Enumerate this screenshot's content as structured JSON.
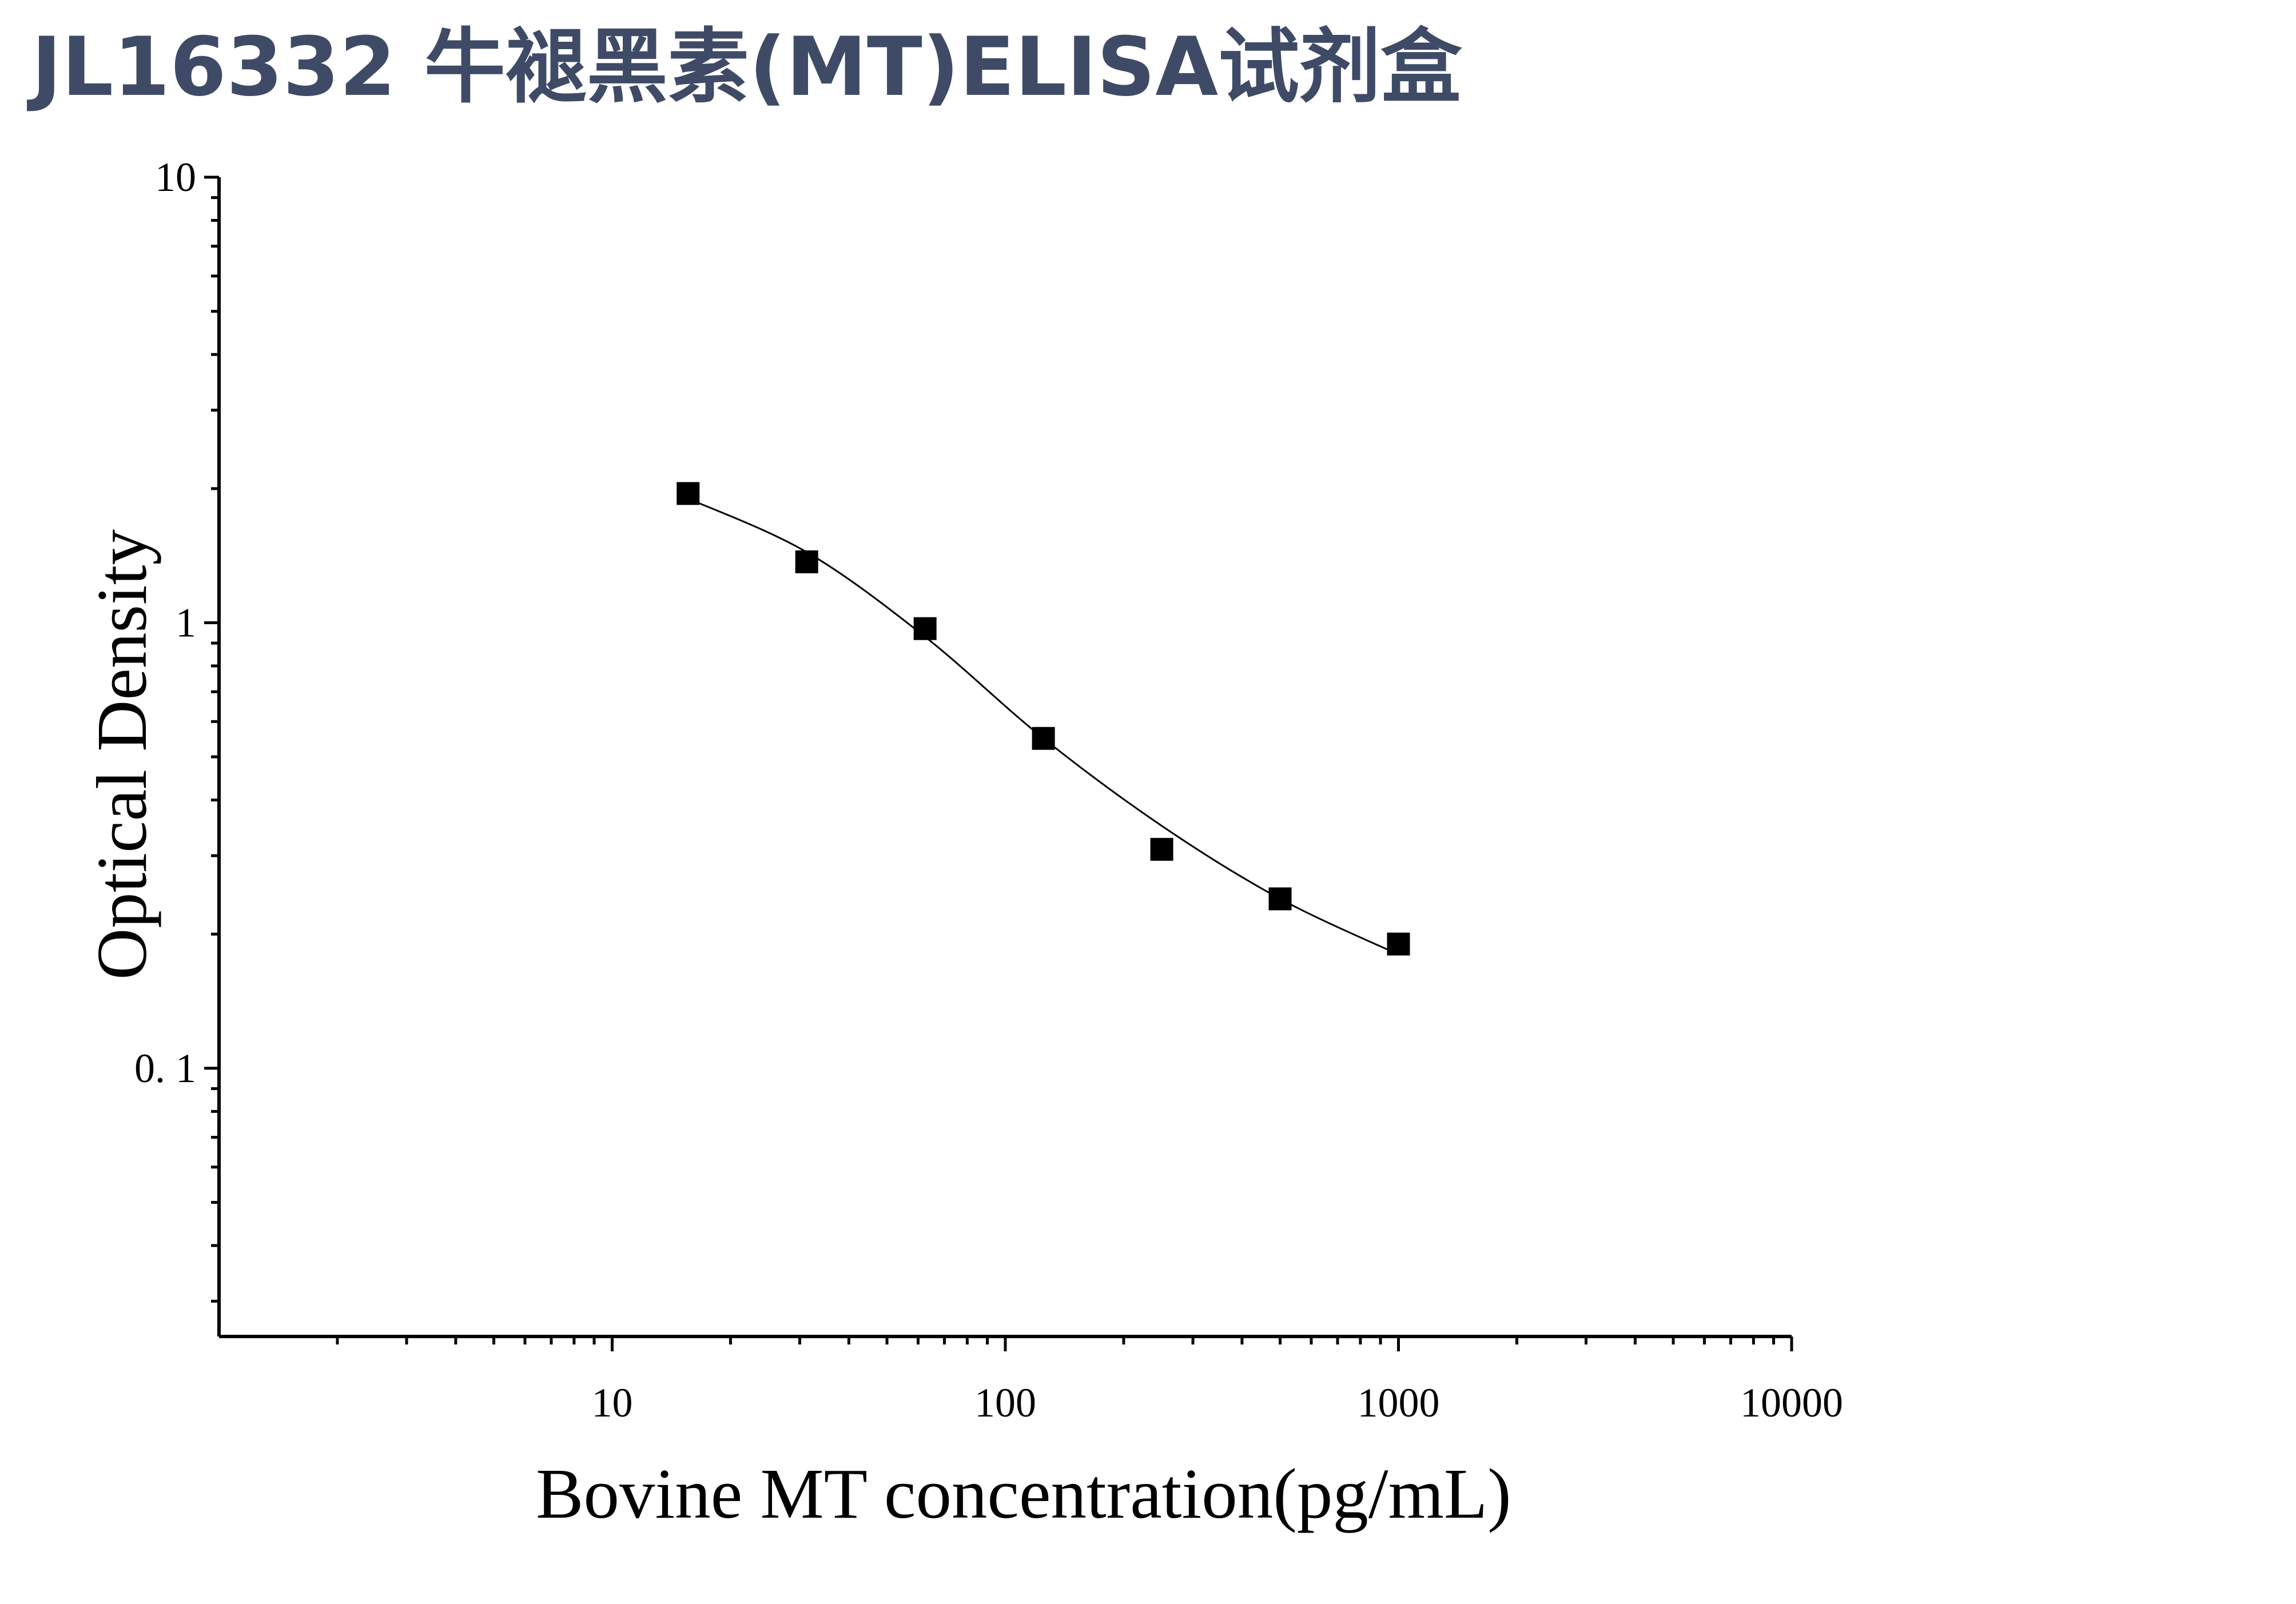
{
  "title": "JL16332 牛褪黑素(MT)ELISA试剂盒",
  "chart_data": {
    "type": "scatter",
    "title": "",
    "xlabel": "Bovine MT concentration(pg/mL)",
    "ylabel": "Optical Density",
    "x_scale": "log",
    "y_scale": "log",
    "xlim": [
      1,
      10000
    ],
    "ylim": [
      0.025,
      10
    ],
    "x_ticks": [
      {
        "value": 10,
        "label": "10"
      },
      {
        "value": 100,
        "label": "100"
      },
      {
        "value": 1000,
        "label": "1000"
      },
      {
        "value": 10000,
        "label": "10000"
      }
    ],
    "y_ticks": [
      {
        "value": 0.1,
        "label": "0. 1"
      },
      {
        "value": 1,
        "label": "1"
      },
      {
        "value": 10,
        "label": "10"
      }
    ],
    "grid": false,
    "legend": "none",
    "marker": "square",
    "marker_color": "#000000",
    "series": [
      {
        "x": [
          15.6,
          31.25,
          62.5,
          125,
          250,
          500,
          1000
        ],
        "y": [
          1.95,
          1.37,
          0.97,
          0.55,
          0.31,
          0.24,
          0.19
        ]
      }
    ],
    "fit_curve": {
      "type": "4PL",
      "color": "#000000",
      "x": [
        15.6,
        31.25,
        62.5,
        125,
        250,
        500,
        1000
      ],
      "y": [
        1.9,
        1.44,
        0.93,
        0.55,
        0.35,
        0.24,
        0.18
      ]
    }
  }
}
